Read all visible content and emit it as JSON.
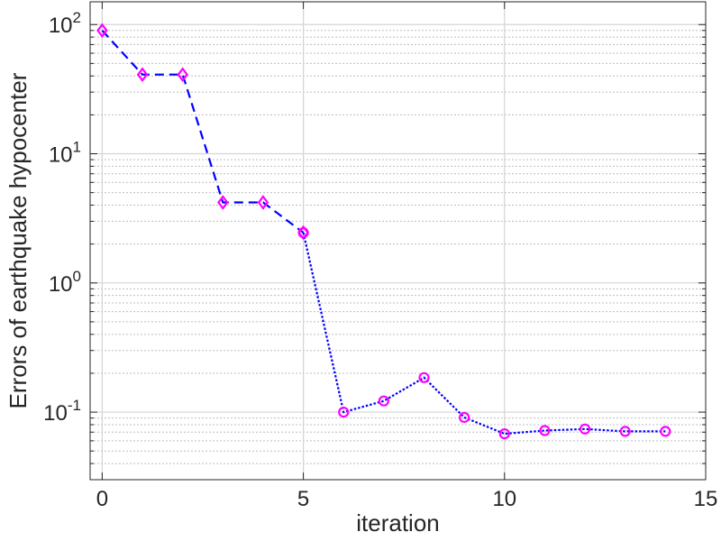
{
  "chart_data": {
    "type": "line",
    "title": "",
    "xlabel": "iteration",
    "ylabel": "Errors of earthquake hypocenter",
    "xlim": [
      -0.3,
      15
    ],
    "ylim": [
      0.03,
      150
    ],
    "yscale": "log",
    "xticks": [
      0,
      5,
      10,
      15
    ],
    "yticks": [
      {
        "value": 0.1,
        "base": "10",
        "exp": "-1"
      },
      {
        "value": 1,
        "base": "10",
        "exp": "0"
      },
      {
        "value": 10,
        "base": "10",
        "exp": "1"
      },
      {
        "value": 100,
        "base": "10",
        "exp": "2"
      }
    ],
    "grid": true,
    "legend": false,
    "series": [
      {
        "line_style": "dashed",
        "marker": "diamond",
        "line_color": "#0000FF",
        "marker_color": "#FF00FF",
        "x": [
          0,
          1,
          2,
          3,
          4,
          5
        ],
        "y": [
          90,
          41,
          41,
          4.2,
          4.2,
          2.45
        ]
      },
      {
        "line_style": "dotted",
        "marker": "circle",
        "line_color": "#0000FF",
        "marker_color": "#FF00FF",
        "x": [
          5,
          6,
          7,
          8,
          9,
          10,
          11,
          12,
          13,
          14
        ],
        "y": [
          2.45,
          0.1,
          0.122,
          0.185,
          0.091,
          0.068,
          0.072,
          0.074,
          0.071,
          0.071
        ]
      }
    ]
  }
}
